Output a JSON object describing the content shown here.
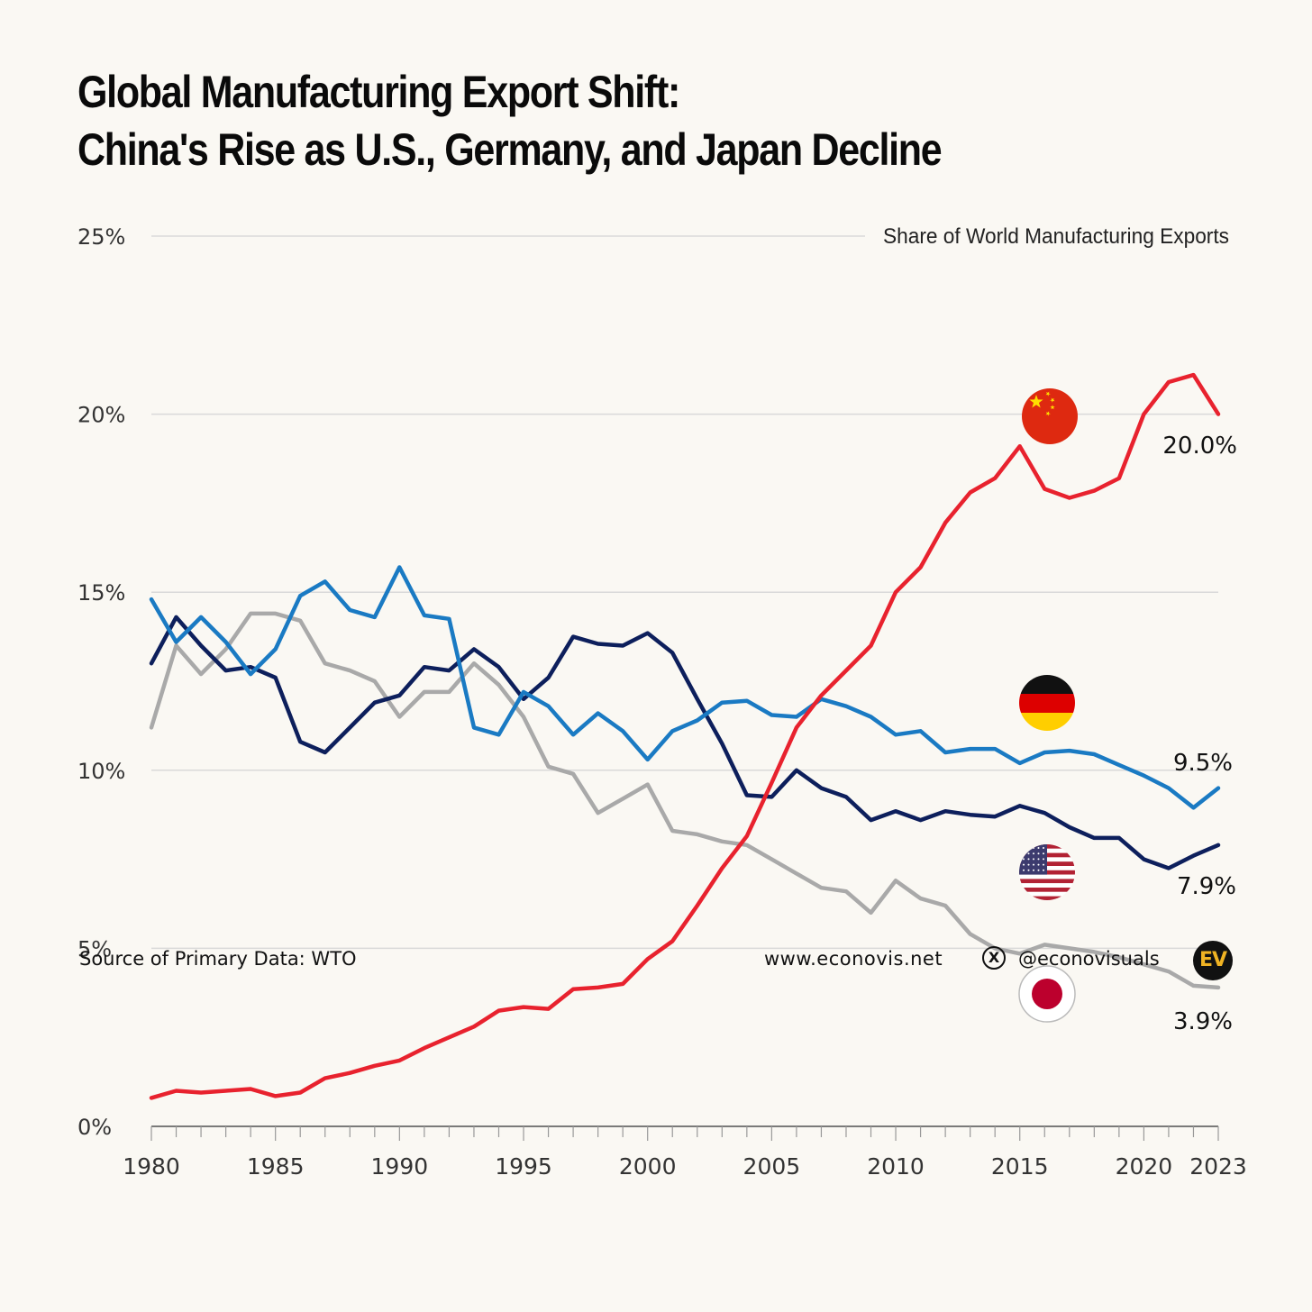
{
  "title_line1": "Global Manufacturing Export Shift:",
  "title_line2": "China's Rise as U.S., Germany, and Japan Decline",
  "footer": {
    "source": "Source of Primary Data: WTO",
    "website": "www.econovis.net",
    "handle": "@econovisuals",
    "x_icon": "x-logo-icon",
    "logo_text": "EV"
  },
  "colors": {
    "china": "#e8222e",
    "germany": "#1a7ac3",
    "usa": "#0d1f5c",
    "japan": "#a9a9a9",
    "grid": "#d9d9d9",
    "background": "#faf8f3"
  },
  "flags": [
    "china-flag-icon",
    "germany-flag-icon",
    "usa-flag-icon",
    "japan-flag-icon"
  ],
  "chart_data": {
    "type": "line",
    "title": "Share of World Manufacturing Exports",
    "xlabel": "",
    "ylabel": "",
    "x": [
      1980,
      1981,
      1982,
      1983,
      1984,
      1985,
      1986,
      1987,
      1988,
      1989,
      1990,
      1991,
      1992,
      1993,
      1994,
      1995,
      1996,
      1997,
      1998,
      1999,
      2000,
      2001,
      2002,
      2003,
      2004,
      2005,
      2006,
      2007,
      2008,
      2009,
      2010,
      2011,
      2012,
      2013,
      2014,
      2015,
      2016,
      2017,
      2018,
      2019,
      2020,
      2021,
      2022,
      2023
    ],
    "xlim": [
      1980,
      2023
    ],
    "ylim": [
      0,
      25
    ],
    "x_ticks": [
      "1980",
      "1985",
      "1990",
      "1995",
      "2000",
      "2005",
      "2010",
      "2015",
      "2020",
      "2023"
    ],
    "y_ticks": [
      "0%",
      "5%",
      "10%",
      "15%",
      "20%",
      "25%"
    ],
    "grid": true,
    "series": [
      {
        "key": "japan",
        "values": [
          11.2,
          13.5,
          12.7,
          13.4,
          14.4,
          14.4,
          14.2,
          13.0,
          12.8,
          12.5,
          11.5,
          12.2,
          12.2,
          13.0,
          12.4,
          11.5,
          10.1,
          9.9,
          8.8,
          9.2,
          9.6,
          8.3,
          8.2,
          8.0,
          7.9,
          7.5,
          7.1,
          6.7,
          6.6,
          6.0,
          6.9,
          6.4,
          6.2,
          5.4,
          5.0,
          4.85,
          5.1,
          5.0,
          4.9,
          4.75,
          4.55,
          4.35,
          3.95,
          3.9
        ],
        "end_label": "3.9%"
      },
      {
        "key": "usa",
        "values": [
          13.0,
          14.3,
          13.5,
          12.8,
          12.9,
          12.6,
          10.8,
          10.5,
          11.2,
          11.9,
          12.1,
          12.9,
          12.8,
          13.4,
          12.9,
          12.0,
          12.6,
          13.75,
          13.55,
          13.5,
          13.85,
          13.3,
          12.0,
          10.75,
          9.3,
          9.25,
          10.0,
          9.5,
          9.25,
          8.6,
          8.85,
          8.6,
          8.85,
          8.75,
          8.7,
          9.0,
          8.8,
          8.4,
          8.1,
          8.1,
          7.5,
          7.25,
          7.6,
          7.9
        ],
        "end_label": "7.9%"
      },
      {
        "key": "germany",
        "values": [
          14.8,
          13.6,
          14.3,
          13.6,
          12.7,
          13.4,
          14.9,
          15.3,
          14.5,
          14.3,
          15.7,
          14.35,
          14.25,
          11.2,
          11.0,
          12.2,
          11.8,
          11.0,
          11.6,
          11.1,
          10.3,
          11.1,
          11.4,
          11.9,
          11.95,
          11.55,
          11.5,
          12.0,
          11.8,
          11.5,
          11.0,
          11.1,
          10.5,
          10.6,
          10.6,
          10.2,
          10.5,
          10.55,
          10.45,
          10.15,
          9.85,
          9.5,
          8.95,
          9.5
        ],
        "end_label": "9.5%"
      },
      {
        "key": "china",
        "values": [
          0.8,
          1.0,
          0.95,
          1.0,
          1.05,
          0.85,
          0.95,
          1.35,
          1.5,
          1.7,
          1.85,
          2.2,
          2.5,
          2.8,
          3.25,
          3.35,
          3.3,
          3.85,
          3.9,
          4.0,
          4.7,
          5.2,
          6.2,
          7.25,
          8.15,
          9.65,
          11.2,
          12.1,
          12.8,
          13.5,
          15.0,
          15.7,
          16.95,
          17.8,
          18.2,
          19.1,
          17.9,
          17.65,
          17.85,
          18.2,
          20.0,
          20.9,
          21.1,
          20.0
        ],
        "end_label": "20.0%"
      }
    ]
  }
}
